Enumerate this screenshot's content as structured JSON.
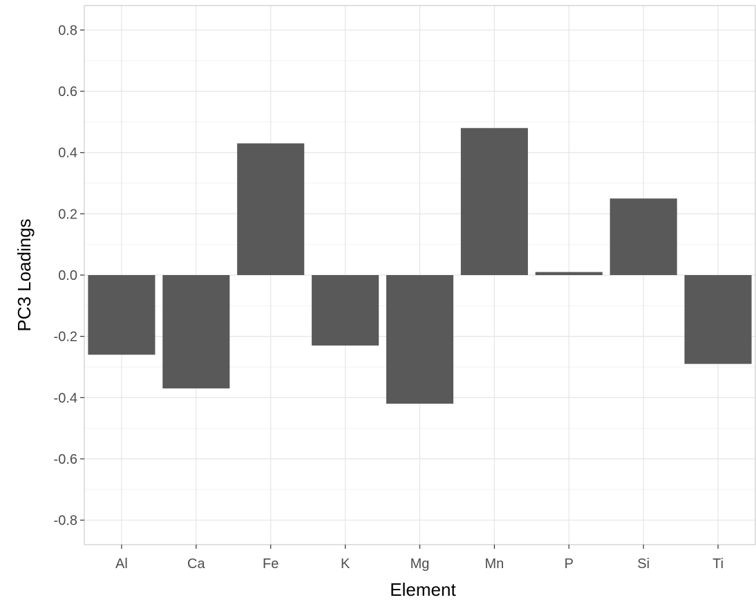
{
  "chart_data": {
    "type": "bar",
    "title": "",
    "xlabel": "Element",
    "ylabel": "PC3 Loadings",
    "categories": [
      "Al",
      "Ca",
      "Fe",
      "K",
      "Mg",
      "Mn",
      "P",
      "Si",
      "Ti"
    ],
    "values": [
      -0.26,
      -0.37,
      0.43,
      -0.23,
      -0.42,
      0.48,
      0.01,
      0.25,
      -0.29
    ],
    "ylim": [
      -0.88,
      0.88
    ],
    "yticks": [
      0.8,
      0.6,
      0.4,
      0.2,
      0.0,
      -0.2,
      -0.4,
      -0.6,
      -0.8
    ],
    "ytick_labels": [
      "0.8",
      "0.6",
      "0.4",
      "0.2",
      "0.0",
      "-0.2",
      "-0.4",
      "-0.6",
      "-0.8"
    ],
    "grid": true,
    "legend": "none",
    "colors": {
      "bar": "#595959",
      "grid_major": "#e5e5e5",
      "grid_minor": "#f2f2f2",
      "panel_border": "#cccccc",
      "tick_text": "#4d4d4d",
      "axis_title": "#000000"
    }
  }
}
